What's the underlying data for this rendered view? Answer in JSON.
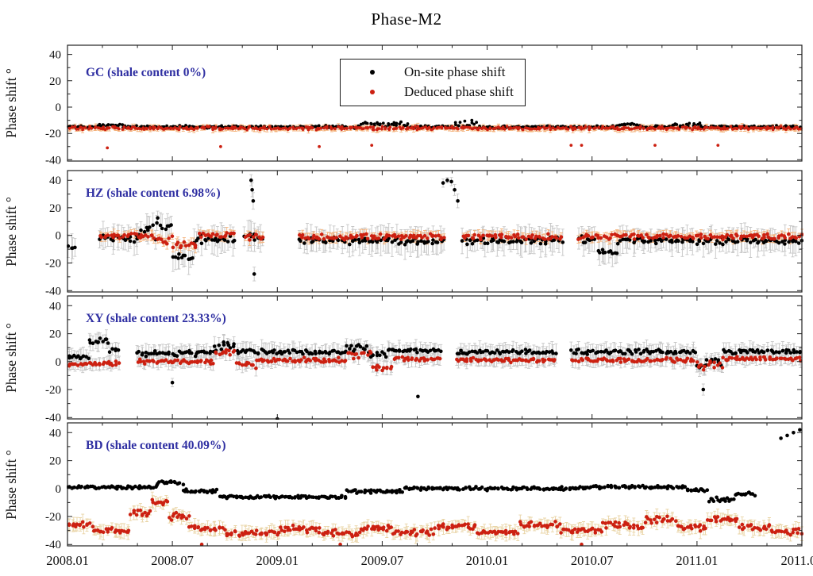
{
  "title": "Phase-M2",
  "legend": {
    "items": [
      {
        "label": "On-site phase shift",
        "color": "#000000"
      },
      {
        "label": "Deduced phase shift",
        "color": "#cc2011"
      }
    ]
  },
  "chart_data": {
    "type": "scatter",
    "title": "Phase-M2",
    "render_seed": 11,
    "x_axis": {
      "range": [
        2008.0,
        2011.5
      ],
      "tick_values": [
        2008.0,
        2008.5,
        2009.0,
        2009.5,
        2010.0,
        2010.5,
        2011.0,
        2011.5
      ],
      "tick_labels": [
        "2008.01",
        "2008.07",
        "2009.01",
        "2009.07",
        "2010.01",
        "2010.07",
        "2011.01",
        "2011.07"
      ],
      "minor_step": 0.166667
    },
    "y_axis": {
      "range": [
        -41,
        47
      ],
      "ticks": [
        40,
        20,
        0,
        -20,
        -40
      ],
      "minor_step": 10,
      "label": "Phase shift °"
    },
    "panels": [
      {
        "id": "GC",
        "label": "GC (shale content 0%)",
        "label_color": "#2f2fa2",
        "series": [
          {
            "name": "On-site phase shift",
            "color": "#000000",
            "r": 1.9,
            "density": 130,
            "err": 0,
            "err_color": "",
            "segments": [
              [
                2008.0,
                2008.14,
                -15,
                1.2
              ],
              [
                2008.14,
                2008.26,
                -13.6,
                1.1
              ],
              [
                2008.26,
                2009.4,
                -15,
                1.2
              ],
              [
                2009.4,
                2009.5,
                -12.5,
                1.6
              ],
              [
                2009.5,
                2009.63,
                -13,
                3.4
              ],
              [
                2009.63,
                2009.84,
                -15,
                1.2
              ],
              [
                2009.84,
                2009.95,
                -13,
                3.2
              ],
              [
                2009.95,
                2010.6,
                -15.2,
                1.2
              ],
              [
                2010.6,
                2010.72,
                -13.5,
                1.3
              ],
              [
                2010.72,
                2010.88,
                -15,
                1.2
              ],
              [
                2010.88,
                2011.02,
                -14,
                2.2
              ],
              [
                2011.02,
                2011.5,
                -15,
                1.2
              ]
            ],
            "outliers": []
          },
          {
            "name": "Deduced phase shift",
            "color": "#cc2011",
            "r": 1.9,
            "density": 130,
            "err": 1.8,
            "err_color": "#f4b37c",
            "segments": [
              [
                2008.0,
                2011.5,
                -16,
                1.5
              ]
            ],
            "outliers": [
              [
                2008.19,
                -31
              ],
              [
                2008.73,
                -30
              ],
              [
                2009.2,
                -30
              ],
              [
                2009.45,
                -29
              ],
              [
                2010.4,
                -29
              ],
              [
                2010.45,
                -29
              ],
              [
                2010.8,
                -29
              ],
              [
                2011.1,
                -29
              ]
            ]
          }
        ]
      },
      {
        "id": "HZ",
        "label": "HZ (shale content 6.98%)",
        "label_color": "#2f2fa2",
        "series": [
          {
            "name": "On-site phase shift",
            "color": "#000000",
            "r": 2.3,
            "density": 100,
            "err": 8,
            "err_color": "#c6c6c6",
            "segments": [
              [
                2008.0,
                2008.04,
                -8,
                2
              ],
              [
                2008.15,
                2008.35,
                -2,
                3
              ],
              [
                2008.35,
                2008.5,
                4,
                9
              ],
              [
                2008.5,
                2008.6,
                -15,
                4
              ],
              [
                2008.6,
                2008.8,
                -3,
                4
              ],
              [
                2008.84,
                2008.94,
                -2,
                5
              ],
              [
                2009.1,
                2009.8,
                -4,
                3
              ],
              [
                2009.88,
                2010.36,
                -4,
                3
              ],
              [
                2010.43,
                2010.52,
                -3,
                3
              ],
              [
                2010.52,
                2010.62,
                -12,
                2
              ],
              [
                2010.62,
                2011.5,
                -4,
                3
              ]
            ],
            "outliers": [
              [
                2008.875,
                40,
                4
              ],
              [
                2008.88,
                33,
                5
              ],
              [
                2008.885,
                25,
                6
              ],
              [
                2008.89,
                -28,
                5
              ],
              [
                2009.79,
                38,
                3
              ],
              [
                2009.81,
                40,
                2
              ],
              [
                2009.83,
                39,
                3
              ],
              [
                2009.845,
                33,
                4
              ],
              [
                2009.86,
                25,
                5
              ]
            ]
          },
          {
            "name": "Deduced phase shift",
            "color": "#cc2011",
            "r": 2.3,
            "density": 100,
            "err": 3,
            "err_color": "#f4b37c",
            "segments": [
              [
                2008.15,
                2008.4,
                0,
                2.5
              ],
              [
                2008.4,
                2008.5,
                -3,
                3.5
              ],
              [
                2008.5,
                2008.62,
                -7,
                3
              ],
              [
                2008.62,
                2008.8,
                0,
                2.5
              ],
              [
                2008.84,
                2008.94,
                -1,
                3
              ],
              [
                2009.1,
                2009.8,
                -1,
                2.5
              ],
              [
                2009.88,
                2010.36,
                -1,
                2.5
              ],
              [
                2010.43,
                2011.5,
                -1,
                2.5
              ]
            ],
            "outliers": []
          }
        ]
      },
      {
        "id": "XY",
        "label": "XY (shale content 23.33%)",
        "label_color": "#2f2fa2",
        "series": [
          {
            "name": "On-site phase shift",
            "color": "#000000",
            "r": 2.3,
            "density": 110,
            "err": 5,
            "err_color": "#c6c6c6",
            "segments": [
              [
                2008.0,
                2008.1,
                4,
                2.5
              ],
              [
                2008.1,
                2008.2,
                15,
                3.5
              ],
              [
                2008.2,
                2008.25,
                8,
                2
              ],
              [
                2008.33,
                2008.7,
                6,
                2.5
              ],
              [
                2008.7,
                2008.8,
                11,
                4
              ],
              [
                2008.8,
                2009.33,
                7,
                2
              ],
              [
                2009.33,
                2009.43,
                10,
                4
              ],
              [
                2009.43,
                2009.52,
                5,
                3
              ],
              [
                2009.52,
                2009.78,
                8,
                2
              ],
              [
                2009.85,
                2010.33,
                7,
                2
              ],
              [
                2010.4,
                2011.0,
                7,
                2
              ],
              [
                2011.0,
                2011.12,
                0,
                5
              ],
              [
                2011.12,
                2011.5,
                7,
                2
              ]
            ],
            "outliers": [
              [
                2008.5,
                -15,
                3
              ],
              [
                2009.0,
                -41
              ],
              [
                2009.67,
                -25
              ],
              [
                2011.03,
                -20,
                4
              ]
            ]
          },
          {
            "name": "Deduced phase shift",
            "color": "#cc2011",
            "r": 2.3,
            "density": 110,
            "err": 4,
            "err_color": "#c6c6c6",
            "segments": [
              [
                2008.0,
                2008.1,
                -2,
                2
              ],
              [
                2008.1,
                2008.25,
                -1,
                2
              ],
              [
                2008.33,
                2008.7,
                0,
                2
              ],
              [
                2008.7,
                2008.8,
                7,
                5
              ],
              [
                2008.8,
                2008.9,
                -2,
                3
              ],
              [
                2008.9,
                2009.33,
                1,
                2
              ],
              [
                2009.33,
                2009.45,
                5,
                4
              ],
              [
                2009.45,
                2009.55,
                -4,
                3
              ],
              [
                2009.55,
                2009.78,
                2,
                2
              ],
              [
                2009.85,
                2010.33,
                1,
                2
              ],
              [
                2010.4,
                2011.0,
                1,
                2
              ],
              [
                2011.0,
                2011.12,
                -3,
                4
              ],
              [
                2011.12,
                2011.5,
                2,
                2
              ]
            ],
            "outliers": []
          }
        ]
      },
      {
        "id": "BD",
        "label": "BD (shale content 40.09%)",
        "label_color": "#2f2fa2",
        "series": [
          {
            "name": "On-site phase shift",
            "color": "#000000",
            "r": 2.3,
            "density": 130,
            "err": 0,
            "err_color": "",
            "segments": [
              [
                2008.0,
                2008.42,
                1,
                1.3
              ],
              [
                2008.42,
                2008.55,
                4,
                1.8
              ],
              [
                2008.55,
                2008.72,
                -2,
                1.8
              ],
              [
                2008.72,
                2009.33,
                -6,
                1.5
              ],
              [
                2009.33,
                2009.6,
                -2,
                1.5
              ],
              [
                2009.6,
                2010.5,
                0,
                1.5
              ],
              [
                2010.5,
                2010.95,
                1,
                1.5
              ],
              [
                2010.95,
                2011.05,
                -1,
                1.5
              ],
              [
                2011.05,
                2011.18,
                -8,
                1.8
              ],
              [
                2011.18,
                2011.28,
                -4,
                1.5
              ]
            ],
            "outliers": [
              [
                2011.4,
                36
              ],
              [
                2011.43,
                38
              ],
              [
                2011.46,
                40
              ],
              [
                2011.49,
                42
              ]
            ]
          },
          {
            "name": "Deduced phase shift",
            "color": "#cc2011",
            "r": 2.3,
            "density": 120,
            "err": 4,
            "err_color": "#e9d4a5",
            "segments": [
              [
                2008.0,
                2008.12,
                -26,
                2.5
              ],
              [
                2008.12,
                2008.3,
                -30,
                2.5
              ],
              [
                2008.3,
                2008.4,
                -18,
                3
              ],
              [
                2008.4,
                2008.48,
                -10,
                2.5
              ],
              [
                2008.48,
                2008.58,
                -20,
                3
              ],
              [
                2008.58,
                2008.75,
                -28,
                3
              ],
              [
                2008.75,
                2009.0,
                -32,
                2.5
              ],
              [
                2009.0,
                2009.2,
                -29,
                3
              ],
              [
                2009.2,
                2009.4,
                -32,
                3
              ],
              [
                2009.4,
                2009.55,
                -28,
                3
              ],
              [
                2009.55,
                2009.75,
                -31,
                3
              ],
              [
                2009.75,
                2009.95,
                -27,
                3
              ],
              [
                2009.95,
                2010.15,
                -31,
                3
              ],
              [
                2010.15,
                2010.35,
                -26,
                3
              ],
              [
                2010.35,
                2010.55,
                -30,
                3
              ],
              [
                2010.55,
                2010.75,
                -26,
                3
              ],
              [
                2010.75,
                2010.9,
                -22,
                3
              ],
              [
                2010.9,
                2011.05,
                -28,
                3
              ],
              [
                2011.05,
                2011.2,
                -22,
                3
              ],
              [
                2011.2,
                2011.35,
                -28,
                3
              ],
              [
                2011.35,
                2011.5,
                -31,
                2.5
              ]
            ],
            "outliers": [
              [
                2008.64,
                -40
              ],
              [
                2009.3,
                -40
              ],
              [
                2010.45,
                -40
              ]
            ]
          }
        ]
      }
    ]
  }
}
